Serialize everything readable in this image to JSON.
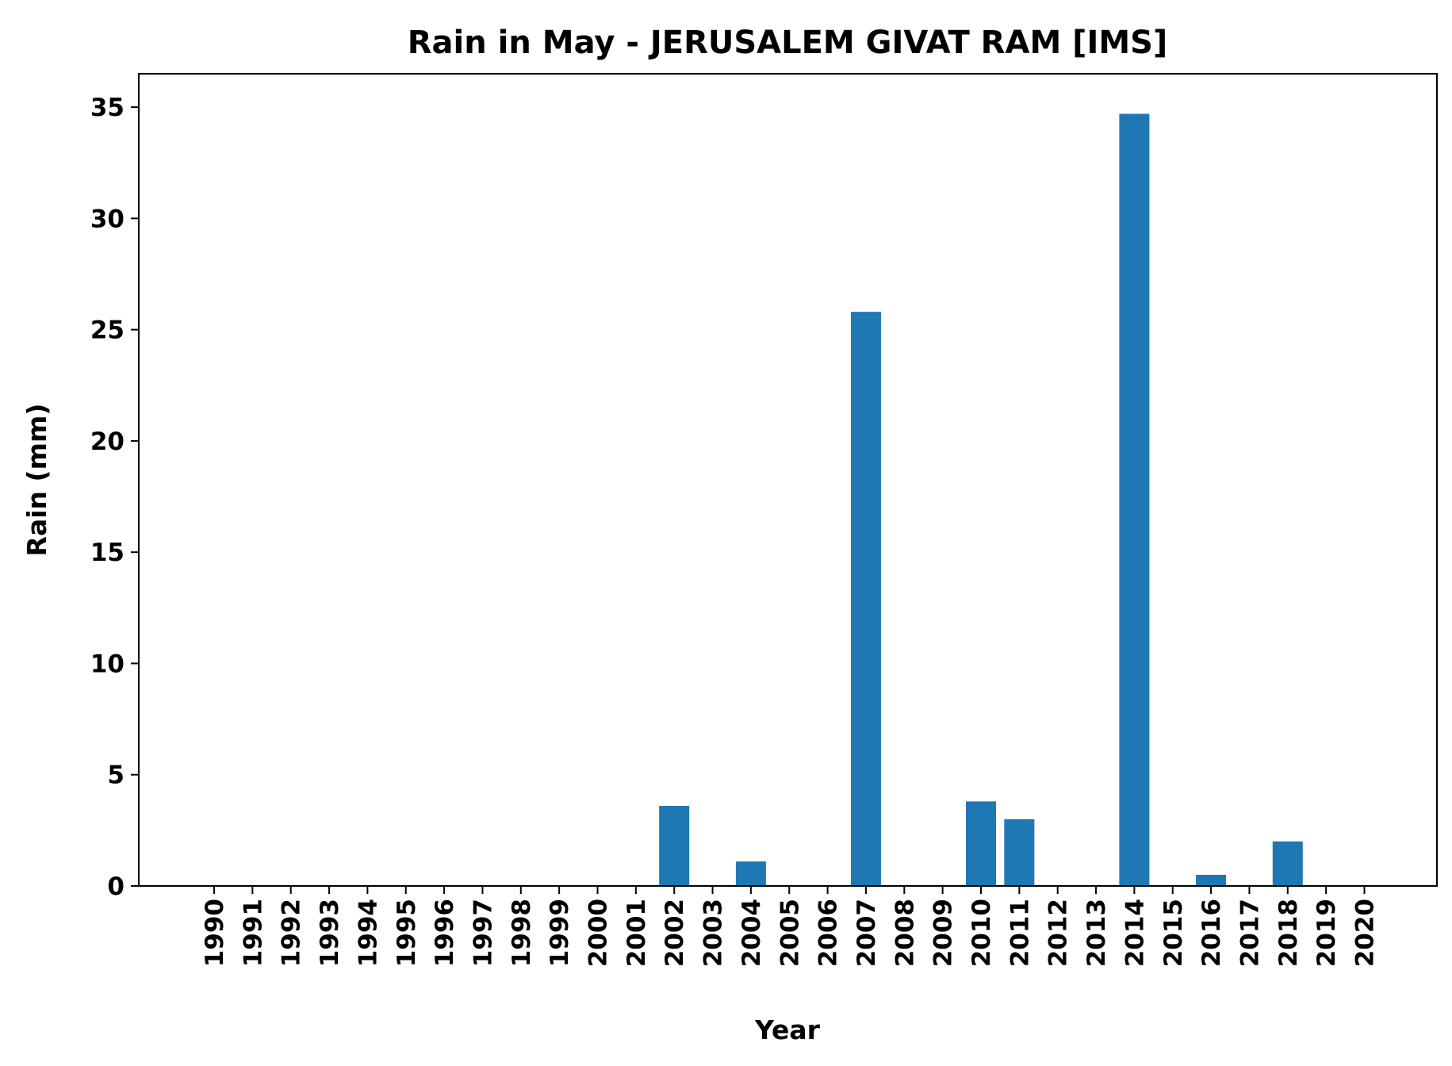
{
  "chart_data": {
    "type": "bar",
    "title": "Rain in May - JERUSALEM GIVAT RAM [IMS]",
    "xlabel": "Year",
    "ylabel": "Rain (mm)",
    "categories": [
      "1990",
      "1991",
      "1992",
      "1993",
      "1994",
      "1995",
      "1996",
      "1997",
      "1998",
      "1999",
      "2000",
      "2001",
      "2002",
      "2003",
      "2004",
      "2005",
      "2006",
      "2007",
      "2008",
      "2009",
      "2010",
      "2011",
      "2012",
      "2013",
      "2014",
      "2015",
      "2016",
      "2017",
      "2018",
      "2019",
      "2020"
    ],
    "values": [
      0,
      0,
      0,
      0,
      0,
      0,
      0,
      0,
      0,
      0,
      0,
      0,
      3.6,
      0,
      1.1,
      0,
      0,
      25.8,
      0,
      0,
      3.8,
      3.0,
      0,
      0,
      34.7,
      0,
      0.5,
      0,
      2.0,
      0,
      0
    ],
    "ylim": [
      0,
      36.5
    ],
    "yticks": [
      0,
      5,
      10,
      15,
      20,
      25,
      30,
      35
    ],
    "ytick_labels": [
      "0",
      "5",
      "10",
      "15",
      "20",
      "25",
      "30",
      "35"
    ],
    "grid": false,
    "legend": "none",
    "bar_color": "#1f77b4"
  }
}
